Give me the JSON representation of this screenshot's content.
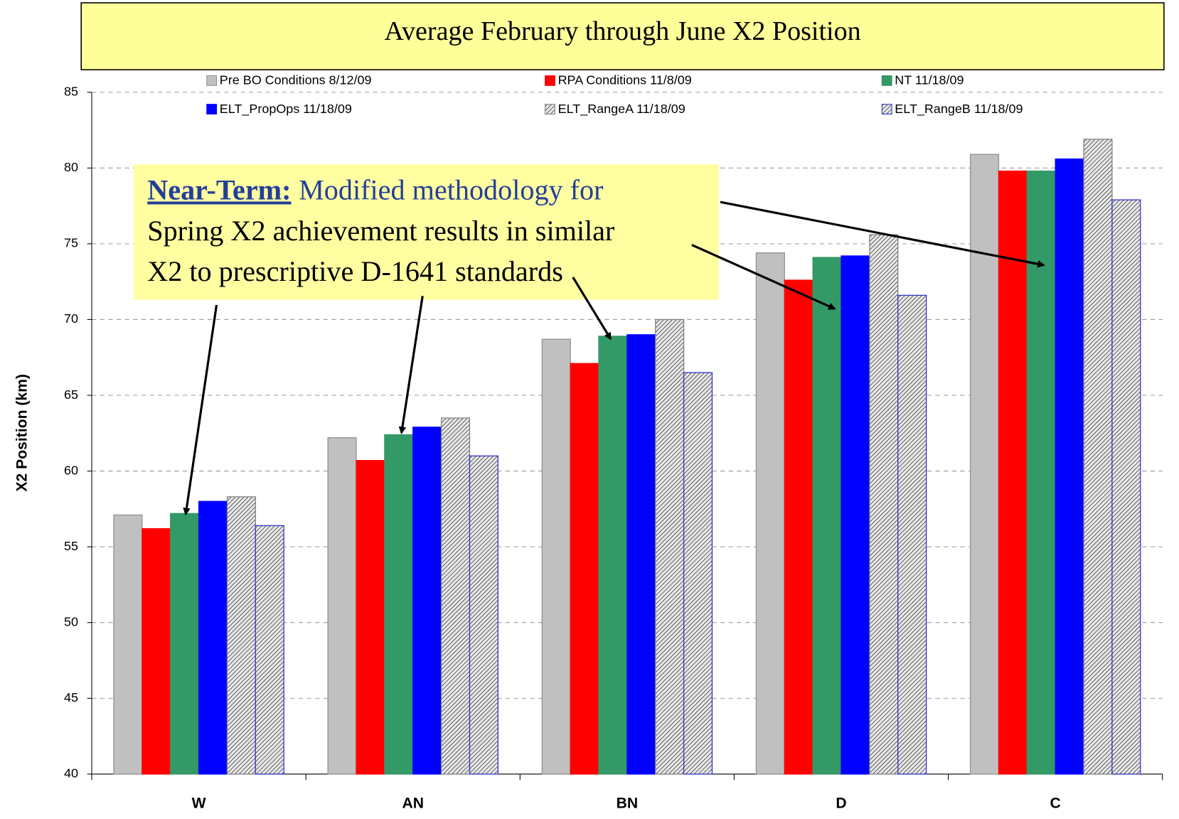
{
  "chart_data": {
    "type": "bar",
    "title": "Average February through June X2 Position",
    "y_label": "X2 Position (km)",
    "categories": [
      "W",
      "AN",
      "BN",
      "D",
      "C"
    ],
    "series": [
      {
        "name": "Pre BO Conditions 8/12/09",
        "color": "#c0c0c0",
        "border": "#909090",
        "values": [
          57.1,
          62.2,
          68.7,
          74.4,
          80.9
        ]
      },
      {
        "name": "RPA Conditions 11/8/09",
        "color": "#ff0000",
        "border": "#ff0000",
        "values": [
          56.2,
          60.7,
          67.1,
          72.6,
          79.8
        ]
      },
      {
        "name": "NT 11/18/09",
        "color": "#339966",
        "border": "#339966",
        "values": [
          57.2,
          62.4,
          68.9,
          74.1,
          79.8
        ]
      },
      {
        "name": "ELT_PropOps 11/18/09",
        "color": "#0000ff",
        "border": "#0000ff",
        "values": [
          58.0,
          62.9,
          69.0,
          74.2,
          80.6
        ]
      },
      {
        "name": "ELT_RangeA 11/18/09",
        "color": "#d0d0d0",
        "border": "#808080",
        "hatch": true,
        "values": [
          58.3,
          63.5,
          70.0,
          75.6,
          81.9
        ]
      },
      {
        "name": "ELT_RangeB 11/18/09",
        "color": "#d0d0d0",
        "border": "#3333cc",
        "hatch": true,
        "values": [
          56.4,
          61.0,
          66.5,
          71.6,
          77.9
        ]
      }
    ],
    "ylim": [
      40,
      85
    ],
    "yticks": [
      40,
      45,
      50,
      55,
      60,
      65,
      70,
      75,
      80,
      85
    ],
    "grid": true,
    "annotation": {
      "heading": "Near-Term:",
      "lines": [
        "Modified methodology for",
        "Spring X2 achievement results in similar",
        "X2 to prescriptive D-1641 standards"
      ]
    }
  }
}
